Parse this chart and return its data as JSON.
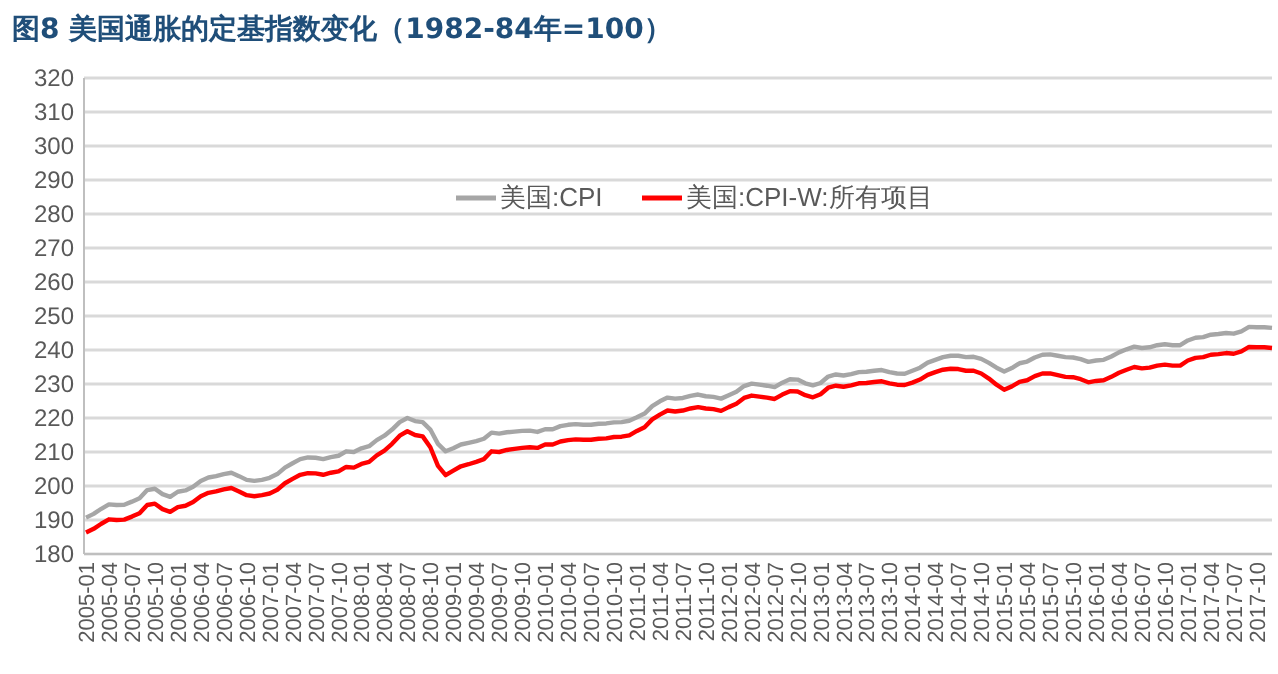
{
  "chart_data": {
    "type": "line",
    "title": "图8  美国通胀的定基指数变化（1982-84年=100）",
    "categories": [
      "2005-01",
      null,
      null,
      "2005-04",
      null,
      null,
      "2005-07",
      null,
      null,
      "2005-10",
      null,
      null,
      "2006-01",
      null,
      null,
      "2006-04",
      null,
      null,
      "2006-07",
      null,
      null,
      "2006-10",
      null,
      null,
      "2007-01",
      null,
      null,
      "2007-04",
      null,
      null,
      "2007-07",
      null,
      null,
      "2007-10",
      null,
      null,
      "2008-01",
      null,
      null,
      "2008-04",
      null,
      null,
      "2008-07",
      null,
      null,
      "2008-10",
      null,
      null,
      "2009-01",
      null,
      null,
      "2009-04",
      null,
      null,
      "2009-07",
      null,
      null,
      "2009-10",
      null,
      null,
      "2010-01",
      null,
      null,
      "2010-04",
      null,
      null,
      "2010-07",
      null,
      null,
      "2010-10",
      null,
      null,
      "2011-01",
      null,
      null,
      "2011-04",
      null,
      null,
      "2011-07",
      null,
      null,
      "2011-10",
      null,
      null,
      "2012-01",
      null,
      null,
      "2012-04",
      null,
      null,
      "2012-07",
      null,
      null,
      "2012-10",
      null,
      null,
      "2013-01",
      null,
      null,
      "2013-04",
      null,
      null,
      "2013-07",
      null,
      null,
      "2013-10",
      null,
      null,
      "2014-01",
      null,
      null,
      "2014-04",
      null,
      null,
      "2014-07",
      null,
      null,
      "2014-10",
      null,
      null,
      "2015-01",
      null,
      null,
      "2015-04",
      null,
      null,
      "2015-07",
      null,
      null,
      "2015-10",
      null,
      null,
      "2016-01",
      null,
      null,
      "2016-04",
      null,
      null,
      "2016-07",
      null,
      null,
      "2016-10",
      null,
      null,
      "2017-01",
      null,
      null,
      "2017-04",
      null,
      null,
      "2017-07",
      null,
      null,
      "2017-10",
      null,
      null
    ],
    "series": [
      {
        "name": "美国:CPI",
        "color": "#a6a6a6",
        "values": [
          190.7,
          191.8,
          193.3,
          194.6,
          194.4,
          194.5,
          195.4,
          196.4,
          198.8,
          199.2,
          197.6,
          196.8,
          198.3,
          198.7,
          199.8,
          201.5,
          202.5,
          202.9,
          203.5,
          203.9,
          202.9,
          201.8,
          201.5,
          201.8,
          202.4,
          203.5,
          205.4,
          206.7,
          207.9,
          208.4,
          208.3,
          207.9,
          208.5,
          208.9,
          210.2,
          210.0,
          211.1,
          211.7,
          213.5,
          214.8,
          216.6,
          218.8,
          220.0,
          219.1,
          218.8,
          216.6,
          212.4,
          210.2,
          211.1,
          212.2,
          212.7,
          213.2,
          213.9,
          215.7,
          215.4,
          215.8,
          216.0,
          216.2,
          216.3,
          215.9,
          216.7,
          216.7,
          217.6,
          218.0,
          218.2,
          218.0,
          218.0,
          218.3,
          218.4,
          218.7,
          218.8,
          219.2,
          220.2,
          221.3,
          223.5,
          224.9,
          226.0,
          225.7,
          225.9,
          226.5,
          226.9,
          226.4,
          226.2,
          225.7,
          226.7,
          227.7,
          229.4,
          230.1,
          229.8,
          229.5,
          229.1,
          230.4,
          231.4,
          231.3,
          230.2,
          229.6,
          230.3,
          232.2,
          232.8,
          232.5,
          232.9,
          233.5,
          233.6,
          233.9,
          234.1,
          233.5,
          233.1,
          233.0,
          233.9,
          234.8,
          236.3,
          237.1,
          237.9,
          238.3,
          238.3,
          237.9,
          238.0,
          237.4,
          236.2,
          234.8,
          233.7,
          234.7,
          236.1,
          236.6,
          237.8,
          238.6,
          238.7,
          238.3,
          237.9,
          237.8,
          237.3,
          236.5,
          236.9,
          237.1,
          238.1,
          239.3,
          240.2,
          241.0,
          240.6,
          240.8,
          241.4,
          241.7,
          241.4,
          241.4,
          242.8,
          243.6,
          243.8,
          244.5,
          244.7,
          245.0,
          244.8,
          245.5,
          246.8,
          246.7,
          246.7,
          246.5
        ]
      },
      {
        "name": "美国:CPI-W:所有项目",
        "color": "#ff0000",
        "values": [
          186.3,
          187.4,
          188.9,
          190.2,
          190.0,
          190.1,
          191.0,
          192.0,
          194.4,
          194.8,
          193.2,
          192.4,
          193.8,
          194.2,
          195.3,
          197.0,
          198.0,
          198.4,
          199.0,
          199.4,
          198.4,
          197.3,
          197.0,
          197.3,
          197.8,
          198.9,
          200.8,
          202.1,
          203.3,
          203.8,
          203.7,
          203.3,
          203.9,
          204.3,
          205.6,
          205.4,
          206.5,
          207.1,
          209.0,
          210.4,
          212.4,
          214.8,
          216.1,
          215.0,
          214.6,
          211.4,
          205.9,
          203.2,
          204.5,
          205.8,
          206.4,
          207.1,
          207.9,
          210.2,
          210.0,
          210.6,
          210.9,
          211.2,
          211.4,
          211.2,
          212.2,
          212.2,
          213.1,
          213.5,
          213.7,
          213.6,
          213.6,
          213.9,
          214.0,
          214.4,
          214.5,
          214.9,
          216.2,
          217.3,
          219.6,
          221.0,
          222.2,
          221.9,
          222.2,
          222.8,
          223.2,
          222.8,
          222.6,
          222.1,
          223.2,
          224.2,
          225.9,
          226.6,
          226.3,
          226.0,
          225.6,
          226.9,
          227.9,
          227.8,
          226.7,
          226.1,
          227.0,
          228.9,
          229.5,
          229.2,
          229.6,
          230.2,
          230.3,
          230.6,
          230.8,
          230.2,
          229.8,
          229.7,
          230.4,
          231.3,
          232.7,
          233.5,
          234.2,
          234.5,
          234.4,
          233.9,
          233.9,
          233.1,
          231.6,
          229.8,
          228.3,
          229.3,
          230.6,
          231.1,
          232.3,
          233.1,
          233.1,
          232.6,
          232.1,
          232.0,
          231.4,
          230.5,
          230.9,
          231.1,
          232.1,
          233.3,
          234.2,
          235.0,
          234.6,
          234.8,
          235.4,
          235.7,
          235.4,
          235.4,
          236.9,
          237.7,
          237.9,
          238.6,
          238.8,
          239.1,
          238.9,
          239.6,
          240.9,
          240.8,
          240.8,
          240.6
        ]
      }
    ],
    "ylim": [
      180,
      320
    ],
    "yticks": [
      180,
      190,
      200,
      210,
      220,
      230,
      240,
      250,
      260,
      270,
      280,
      290,
      300,
      310,
      320
    ],
    "grid": "y",
    "legend": "top",
    "marker": "none",
    "line_style": "solid"
  }
}
